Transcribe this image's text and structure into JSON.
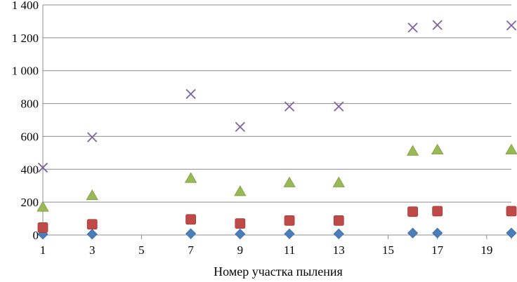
{
  "chart_data": {
    "type": "scatter",
    "title": "",
    "xlabel": "Номер участка пыления",
    "ylabel": "",
    "xlim": [
      1,
      20
    ],
    "ylim": [
      0,
      1400
    ],
    "x_ticks": [
      1,
      3,
      5,
      7,
      9,
      11,
      13,
      15,
      17,
      19
    ],
    "y_ticks": [
      0,
      200,
      400,
      600,
      800,
      1000,
      1200,
      1400
    ],
    "y_tick_labels": [
      "0",
      "200",
      "400",
      "600",
      "800",
      "1 000",
      "1 200",
      "1 400"
    ],
    "grid": "horizontal",
    "x": [
      1,
      3,
      7,
      9,
      11,
      13,
      16,
      17,
      20
    ],
    "series": [
      {
        "marker": "diamond",
        "color": "#4a7ebb",
        "values": [
          5,
          5,
          8,
          6,
          7,
          7,
          12,
          12,
          12
        ]
      },
      {
        "marker": "square",
        "color": "#be4b48",
        "values": [
          45,
          65,
          95,
          70,
          88,
          88,
          142,
          145,
          145
        ]
      },
      {
        "marker": "triangle",
        "color": "#98b954",
        "values": [
          170,
          240,
          345,
          265,
          318,
          318,
          510,
          518,
          518
        ]
      },
      {
        "marker": "x",
        "color": "#7e649e",
        "values": [
          410,
          595,
          858,
          658,
          782,
          782,
          1262,
          1278,
          1275
        ]
      }
    ]
  }
}
